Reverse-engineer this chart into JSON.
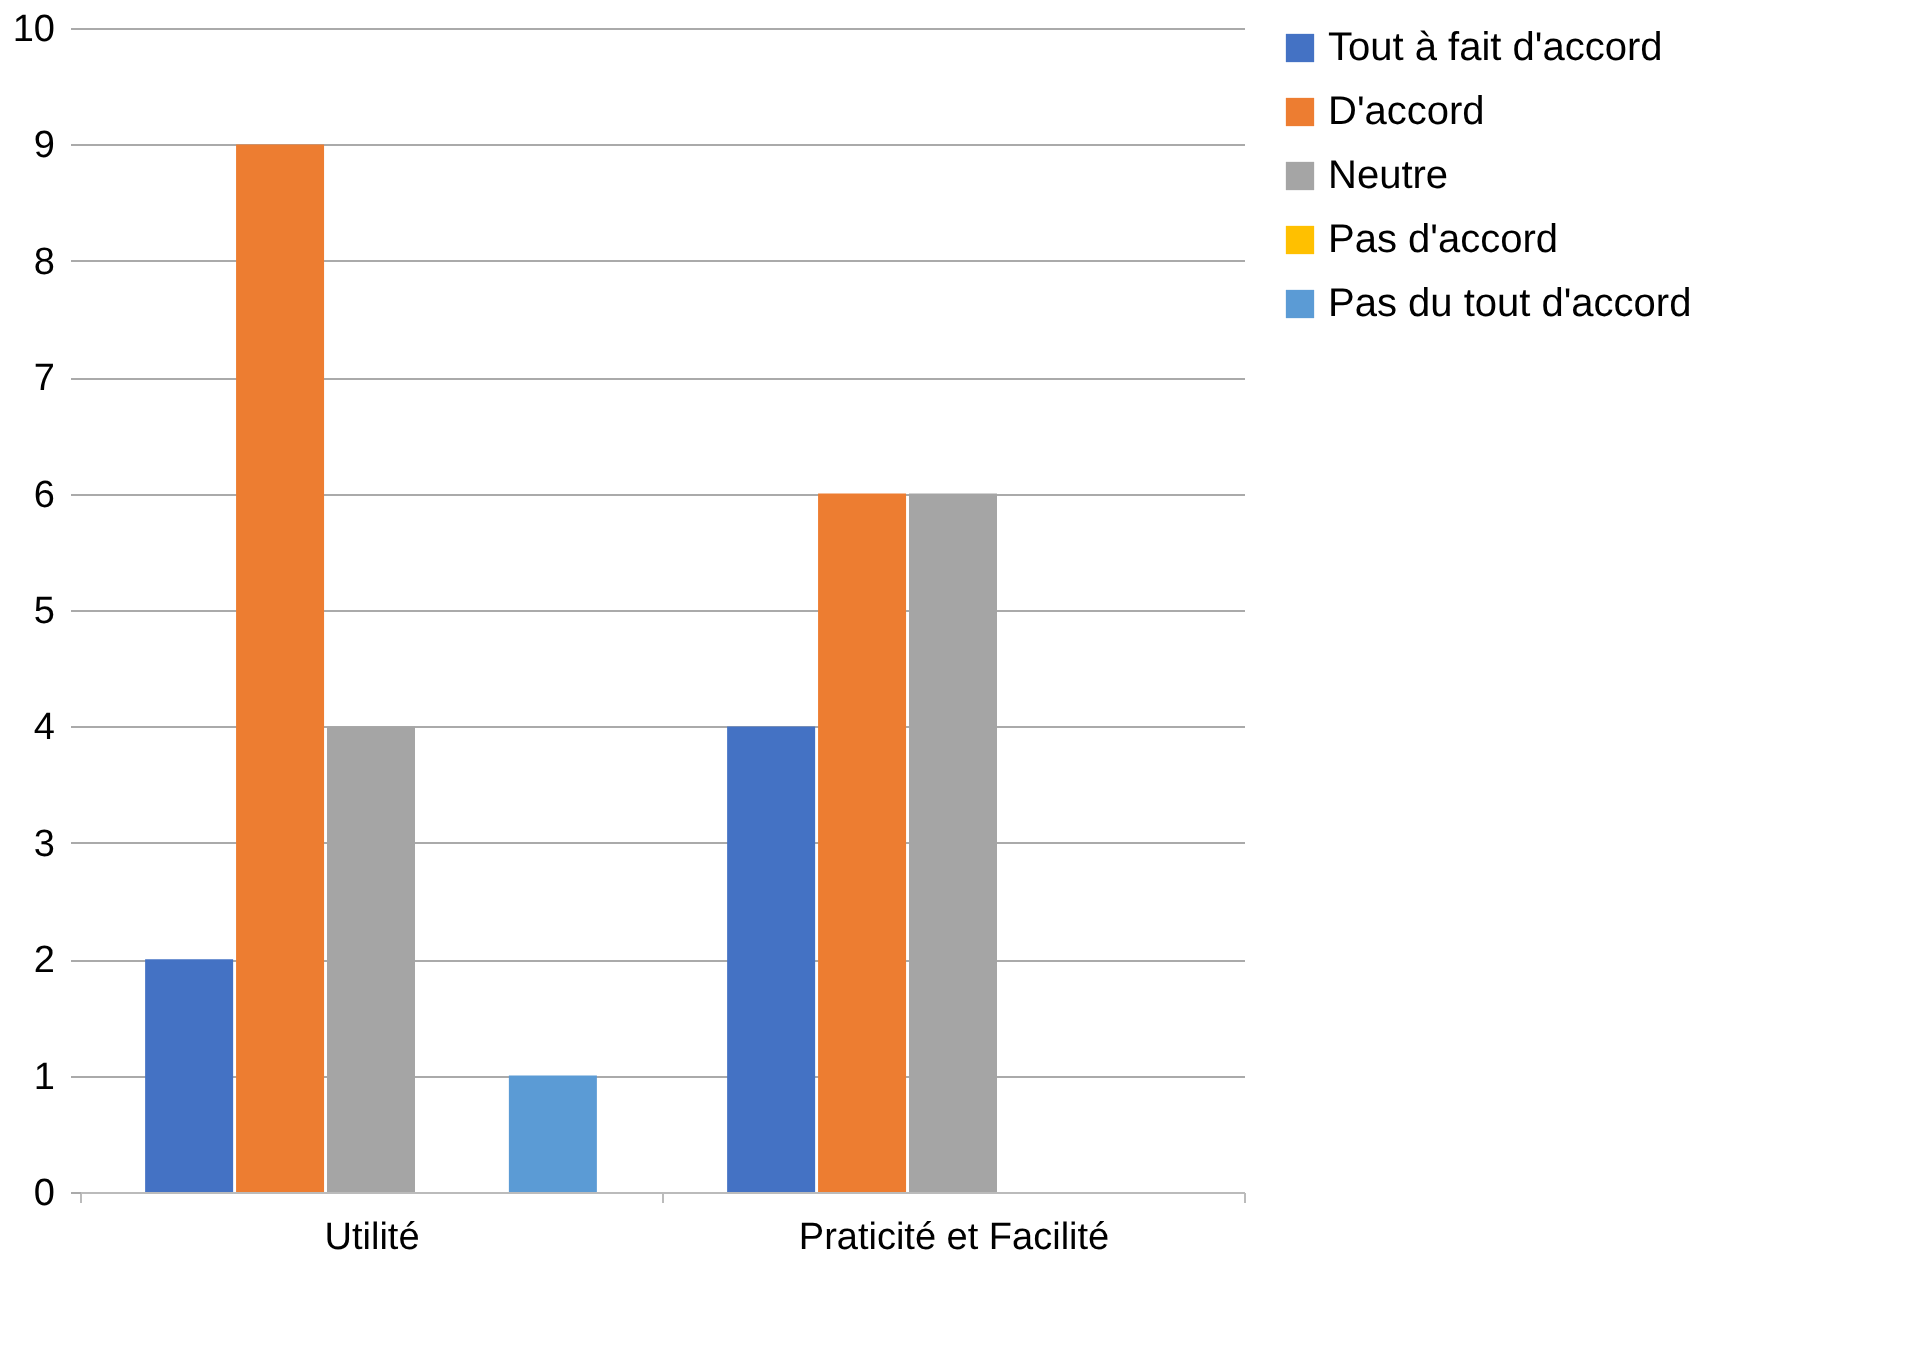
{
  "chart_data": {
    "type": "bar",
    "categories": [
      "Utilité",
      "Praticité et Facilité"
    ],
    "series": [
      {
        "name": "Tout à fait d'accord",
        "color": "#4472c4",
        "values": [
          2,
          4
        ]
      },
      {
        "name": "D'accord",
        "color": "#ed7d31",
        "values": [
          9,
          6
        ]
      },
      {
        "name": "Neutre",
        "color": "#a5a5a5",
        "values": [
          4,
          6
        ]
      },
      {
        "name": "Pas d'accord",
        "color": "#ffc000",
        "values": [
          0,
          0
        ]
      },
      {
        "name": "Pas du tout d'accord",
        "color": "#5b9bd5",
        "values": [
          1,
          0
        ]
      }
    ],
    "ylim": [
      0,
      10
    ],
    "yticks": [
      0,
      1,
      2,
      3,
      4,
      5,
      6,
      7,
      8,
      9,
      10
    ],
    "grid": "y",
    "legend": "right"
  }
}
